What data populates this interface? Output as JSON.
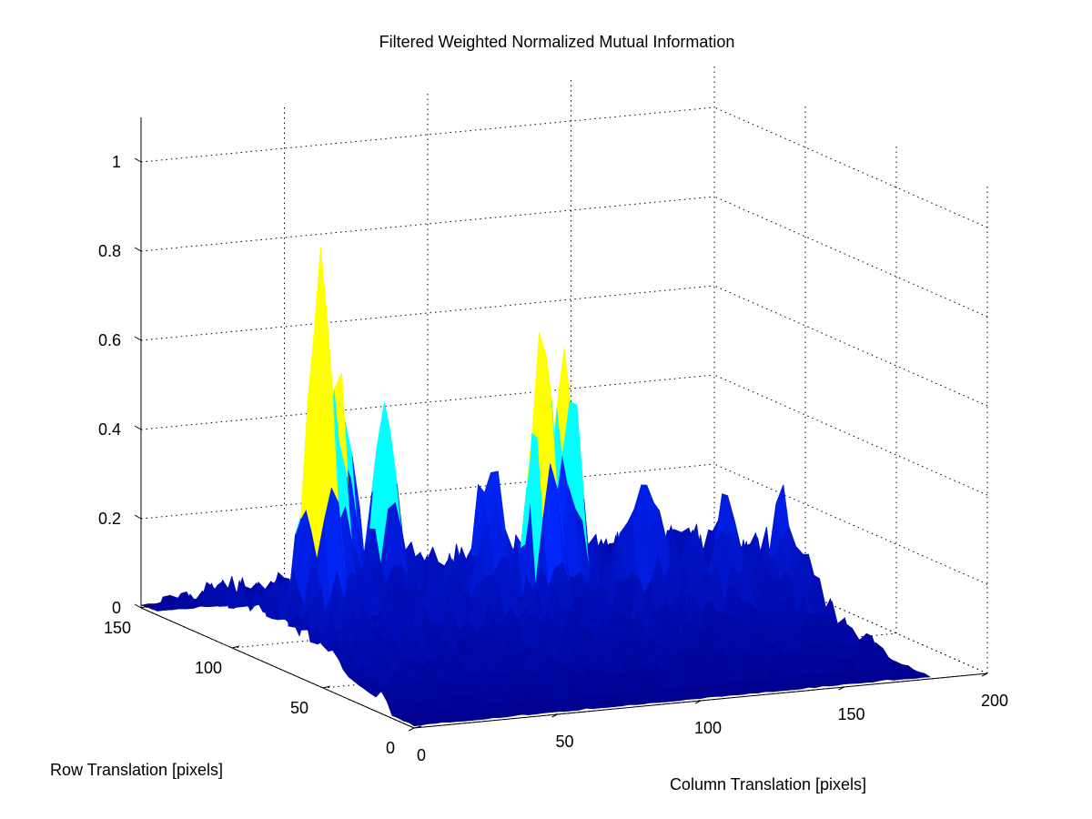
{
  "chart_data": {
    "type": "surface",
    "title": "Filtered Weighted Normalized Mutual Information",
    "xlabel": "Column Translation [pixels]",
    "ylabel": "Row Translation [pixels]",
    "zlabel": "",
    "xlim": [
      0,
      200
    ],
    "ylim": [
      0,
      150
    ],
    "zlim": [
      0,
      1.1
    ],
    "xticks": [
      0,
      50,
      100,
      150,
      200
    ],
    "yticks": [
      0,
      50,
      100,
      150
    ],
    "zticks": [
      0,
      0.2,
      0.4,
      0.6,
      0.8,
      1
    ],
    "grid": true,
    "colormap": "jet",
    "surface_extent": {
      "x": [
        0,
        180
      ],
      "y": [
        0,
        150
      ]
    },
    "colors": {
      "low": "#00008f",
      "mid": "#0000ff",
      "cyan": "#00ffff",
      "yellow": "#ffff00"
    },
    "peaks": [
      {
        "x": 15,
        "y": 75,
        "z": 0.83
      },
      {
        "x": 28,
        "y": 88,
        "z": 0.5
      },
      {
        "x": 35,
        "y": 95,
        "z": 0.42
      },
      {
        "x": 52,
        "y": 98,
        "z": 0.42
      },
      {
        "x": 88,
        "y": 68,
        "z": 0.62
      },
      {
        "x": 100,
        "y": 75,
        "z": 0.55
      },
      {
        "x": 72,
        "y": 72,
        "z": 0.3
      },
      {
        "x": 125,
        "y": 70,
        "z": 0.25
      },
      {
        "x": 148,
        "y": 60,
        "z": 0.2
      },
      {
        "x": 165,
        "y": 55,
        "z": 0.18
      }
    ]
  }
}
